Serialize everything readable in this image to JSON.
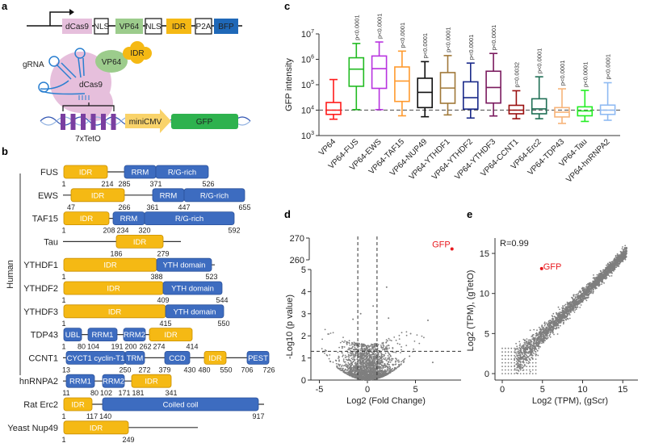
{
  "panel_labels": {
    "a": "a",
    "b": "b",
    "c": "c",
    "d": "d",
    "e": "e"
  },
  "panel_a": {
    "construct": [
      {
        "label": "dCas9",
        "color": "#e6bfdc"
      },
      {
        "label": "NLS",
        "color": "#ffffff"
      },
      {
        "label": "VP64",
        "color": "#9ccc8c"
      },
      {
        "label": "NLS",
        "color": "#ffffff"
      },
      {
        "label": "IDR",
        "color": "#f5b914"
      },
      {
        "label": "P2A",
        "color": "#ffffff"
      },
      {
        "label": "BFP",
        "color": "#1f68b8"
      }
    ],
    "grna_label": "gRNA",
    "vp64_label": "VP64",
    "idr_label": "IDR",
    "dcas9_label": "dCas9",
    "teto_label": "7xTetO",
    "minicmv_label": "miniCMV",
    "gfp_label": "GFP"
  },
  "panel_b": {
    "group_label": "Human",
    "proteins": [
      {
        "name": "FUS",
        "domains": [
          {
            "label": "IDR",
            "start": 1,
            "end": 214,
            "type": "idr"
          },
          {
            "label": "RRM",
            "start": 285,
            "end": 371,
            "type": "domain"
          },
          {
            "label": "R/G-rich",
            "start": 371,
            "end": 526,
            "type": "domain"
          }
        ],
        "numbers": [
          1,
          214,
          285,
          371,
          526
        ]
      },
      {
        "name": "EWS",
        "domains": [
          {
            "label": "IDR",
            "start": 47,
            "end": 266,
            "type": "idr"
          },
          {
            "label": "RRM",
            "start": 361,
            "end": 447,
            "type": "domain"
          },
          {
            "label": "R/G-rich",
            "start": 447,
            "end": 655,
            "type": "domain"
          }
        ],
        "numbers": [
          47,
          266,
          361,
          447,
          655
        ]
      },
      {
        "name": "TAF15",
        "domains": [
          {
            "label": "IDR",
            "start": 1,
            "end": 208,
            "type": "idr"
          },
          {
            "label": "RRM",
            "start": 234,
            "end": 320,
            "type": "domain"
          },
          {
            "label": "R/G-rich",
            "start": 320,
            "end": 592,
            "type": "domain"
          }
        ],
        "numbers": [
          1,
          208,
          234,
          320,
          592
        ]
      },
      {
        "name": "Tau",
        "domains": [
          {
            "label": "IDR",
            "start": 186,
            "end": 279,
            "type": "idr"
          }
        ],
        "numbers": [
          186,
          279
        ]
      },
      {
        "name": "YTHDF1",
        "domains": [
          {
            "label": "IDR",
            "start": 1,
            "end": 388,
            "type": "idr"
          },
          {
            "label": "YTH domain",
            "start": 388,
            "end": 523,
            "type": "domain"
          }
        ],
        "numbers": [
          1,
          388,
          523
        ]
      },
      {
        "name": "YTHDF2",
        "domains": [
          {
            "label": "IDR",
            "start": 1,
            "end": 409,
            "type": "idr"
          },
          {
            "label": "YTH domain",
            "start": 409,
            "end": 544,
            "type": "domain"
          }
        ],
        "numbers": [
          1,
          409,
          544
        ]
      },
      {
        "name": "YTHDF3",
        "domains": [
          {
            "label": "IDR",
            "start": 1,
            "end": 415,
            "type": "idr"
          },
          {
            "label": "YTH domain",
            "start": 415,
            "end": 550,
            "type": "domain"
          }
        ],
        "numbers": [
          1,
          415,
          550
        ]
      },
      {
        "name": "TDP43",
        "domains": [
          {
            "label": "UBL",
            "start": 1,
            "end": 80,
            "type": "domain"
          },
          {
            "label": "RRM1",
            "start": 104,
            "end": 191,
            "type": "domain"
          },
          {
            "label": "RRM2",
            "start": 200,
            "end": 262,
            "type": "domain"
          },
          {
            "label": "IDR",
            "start": 274,
            "end": 414,
            "type": "idr"
          }
        ],
        "numbers": [
          1,
          80,
          104,
          191,
          200,
          262,
          274,
          414
        ]
      },
      {
        "name": "CCNT1",
        "domains": [
          {
            "label": "CYCT1 cyclin-T1",
            "start": 13,
            "end": 250,
            "type": "domain"
          },
          {
            "label": "TRM",
            "start": 250,
            "end": 272,
            "type": "domain"
          },
          {
            "label": "CCD",
            "start": 379,
            "end": 430,
            "type": "domain"
          },
          {
            "label": "IDR",
            "start": 480,
            "end": 550,
            "type": "idr"
          },
          {
            "label": "PEST",
            "start": 706,
            "end": 726,
            "type": "domain"
          }
        ],
        "numbers": [
          13,
          250,
          272,
          379,
          430,
          480,
          550,
          706,
          726
        ]
      },
      {
        "name": "hnRNPA2",
        "domains": [
          {
            "label": "RRM1",
            "start": 11,
            "end": 80,
            "type": "domain"
          },
          {
            "label": "RRM2",
            "start": 102,
            "end": 171,
            "type": "domain"
          },
          {
            "label": "IDR",
            "start": 181,
            "end": 341,
            "type": "idr"
          }
        ],
        "numbers": [
          11,
          80,
          102,
          171,
          181,
          341
        ]
      },
      {
        "name": "Rat Erc2",
        "domains": [
          {
            "label": "IDR",
            "start": 1,
            "end": 117,
            "type": "idr"
          },
          {
            "label": "Coiled coil",
            "start": 140,
            "end": 917,
            "type": "domain"
          }
        ],
        "numbers": [
          1,
          117,
          140,
          917
        ]
      },
      {
        "name": "Yeast Nup49",
        "domains": [
          {
            "label": "IDR",
            "start": 1,
            "end": 249,
            "type": "idr"
          }
        ],
        "numbers": [
          1,
          249
        ]
      }
    ],
    "colors": {
      "idr": "#f5b914",
      "domain": "#3d6cc0"
    }
  },
  "chart_data": [
    {
      "panel": "c",
      "type": "box",
      "ylabel": "GFP intensity",
      "yscale": "log",
      "ylim": [
        1000,
        10000000
      ],
      "yticks": [
        "10^3",
        "10^4",
        "10^5",
        "10^6",
        "10^7"
      ],
      "reference_line": 10000,
      "categories": [
        "VP64",
        "VP64-FUS",
        "VP64-EWS",
        "VP64-TAF15",
        "VP64-NUP49",
        "VP64-YTHDF1",
        "VP64-YTHDF2",
        "VP64-YTHDF3",
        "VP64-CCNT1",
        "VP64-Erc2",
        "VP64-TDP43",
        "VP64-Tau",
        "VP64-hnRNPA2"
      ],
      "pvalues": [
        "",
        "p<0.0001",
        "p<0.0001",
        "p<0.0001",
        "p<0.0001",
        "p<0.0001",
        "p<0.0001",
        "p<0.0001",
        "p=0.0032",
        "p<0.0001",
        "p<0.0001",
        "p<0.0001",
        "p<0.0001"
      ],
      "colors": [
        "#ff1a1a",
        "#22bb22",
        "#b833e0",
        "#ff9a2e",
        "#111111",
        "#a07838",
        "#1a2a8a",
        "#7a1a5e",
        "#9a1010",
        "#1f6f55",
        "#f7b47a",
        "#22ee22",
        "#8fbaf2"
      ],
      "boxes": [
        {
          "min": 4400,
          "q1": 6800,
          "median": 10000,
          "q3": 20000,
          "max": 160000
        },
        {
          "min": 10500,
          "q1": 87000,
          "median": 410000,
          "q3": 1150000,
          "max": 4200000
        },
        {
          "min": 10500,
          "q1": 72000,
          "median": 430000,
          "q3": 1350000,
          "max": 4800000
        },
        {
          "min": 6000,
          "q1": 22000,
          "median": 140000,
          "q3": 500000,
          "max": 2100000
        },
        {
          "min": 5500,
          "q1": 12600,
          "median": 50000,
          "q3": 180000,
          "max": 810000
        },
        {
          "min": 6500,
          "q1": 18600,
          "median": 74000,
          "q3": 300000,
          "max": 1400000
        },
        {
          "min": 4900,
          "q1": 11000,
          "median": 31000,
          "q3": 130000,
          "max": 710000
        },
        {
          "min": 5900,
          "q1": 19000,
          "median": 78000,
          "q3": 340000,
          "max": 1700000
        },
        {
          "min": 4600,
          "q1": 7200,
          "median": 10000,
          "q3": 15500,
          "max": 58000
        },
        {
          "min": 4600,
          "q1": 7200,
          "median": 11200,
          "q3": 28000,
          "max": 205000
        },
        {
          "min": 3000,
          "q1": 5400,
          "median": 8300,
          "q3": 12600,
          "max": 69000
        },
        {
          "min": 3600,
          "q1": 6000,
          "median": 9300,
          "q3": 13500,
          "max": 60000
        },
        {
          "min": 4000,
          "q1": 6800,
          "median": 10000,
          "q3": 15800,
          "max": 120000
        }
      ]
    },
    {
      "panel": "d",
      "type": "scatter",
      "xlabel": "Log2 (Fold Change)",
      "ylabel": "-Log10 (p value)",
      "xticks": [
        -5,
        0,
        5
      ],
      "yticks_lower": [
        0,
        1,
        2,
        3,
        4,
        5
      ],
      "yticks_upper": [
        260,
        270
      ],
      "xlim": [
        -6,
        9.5
      ],
      "axis_break": [
        5,
        260
      ],
      "thresholds": {
        "log2fc": [
          -1,
          1
        ],
        "neglog10p": 1.3
      },
      "highlight": {
        "label": "GFP",
        "x": 8.8,
        "y": 265,
        "color": "#e8191e"
      },
      "outliers": [
        [
          2.0,
          4.2
        ],
        [
          0.6,
          3.35
        ],
        [
          -0.7,
          3.0
        ],
        [
          -1.5,
          2.75
        ],
        [
          2.2,
          2.8
        ],
        [
          6.3,
          2.7
        ],
        [
          4.5,
          2.1
        ],
        [
          6.8,
          0.8
        ]
      ],
      "point_color": "#7f7f7f"
    },
    {
      "panel": "e",
      "type": "scatter",
      "xlabel": "Log2 (TPM), (gScr)",
      "ylabel": "Log2 (TPM), (gTetO)",
      "xticks": [
        0,
        5,
        10,
        15
      ],
      "yticks": [
        0,
        5,
        10,
        15
      ],
      "xlim": [
        -0.8,
        17
      ],
      "ylim": [
        -0.8,
        16.5
      ],
      "annotation": "R=0.99",
      "highlight": {
        "label": "GFP",
        "x": 4.9,
        "y": 13.1,
        "color": "#e8191e"
      },
      "point_color": "#7f7f7f"
    }
  ]
}
